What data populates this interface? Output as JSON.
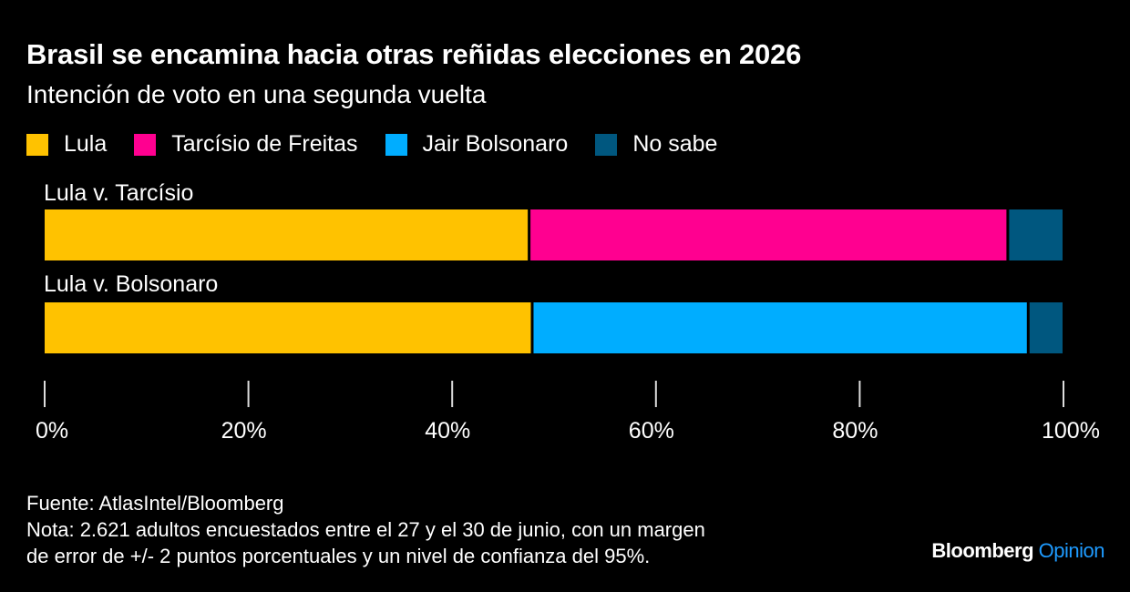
{
  "title": "Brasil se encamina hacia otras reñidas elecciones en 2026",
  "subtitle": "Intención de voto en una segunda vuelta",
  "chart_data": {
    "type": "bar",
    "orientation": "horizontal",
    "stacked": true,
    "categories": [
      "Lula v. Tarcísio",
      "Lula v. Bolsonaro"
    ],
    "series": [
      {
        "name": "Lula",
        "color": "#ffc200",
        "values": [
          47.6,
          47.9
        ]
      },
      {
        "name": "Tarcísio de Freitas",
        "color": "#ff0090",
        "values": [
          46.9,
          0
        ]
      },
      {
        "name": "Jair Bolsonaro",
        "color": "#00adff",
        "values": [
          0,
          48.6
        ]
      },
      {
        "name": "No sabe",
        "color": "#00577f",
        "values": [
          5.5,
          3.5
        ]
      }
    ],
    "xlim": [
      0,
      100
    ],
    "xticks": [
      "0%",
      "20%",
      "40%",
      "60%",
      "80%",
      "100%"
    ],
    "legend_position": "top-left",
    "grid": false
  },
  "footer": {
    "source": "Fuente: AtlasIntel/Bloomberg",
    "note_line1": "Nota: 2.621 adultos encuestados entre el 27 y el 30 de junio, con un margen",
    "note_line2": "de error de +/- 2 puntos porcentuales y un nivel de confianza del 95%."
  },
  "brand": {
    "name": "Bloomberg",
    "suffix": "Opinion"
  }
}
